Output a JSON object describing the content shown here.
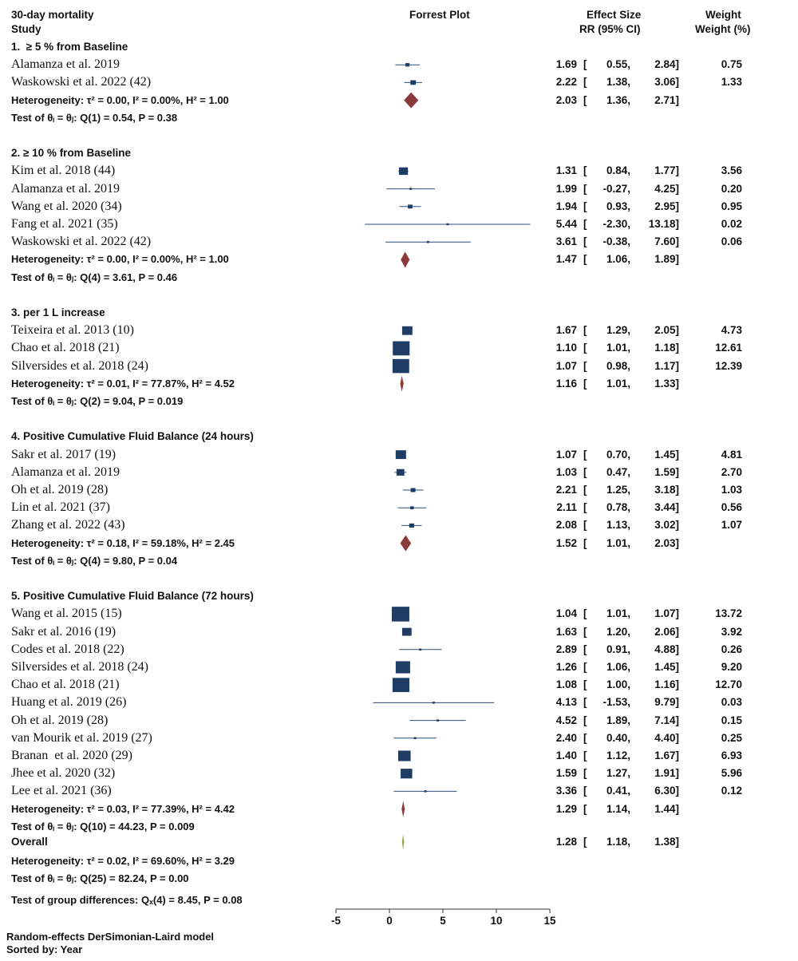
{
  "header": {
    "outcome": "30-day mortality",
    "study": "Study",
    "plot_title": "Forrest Plot",
    "effect_title": "Effect Size",
    "effect_sub": "RR (95% CI)",
    "weight_title": "Weight",
    "weight_sub": "Weight (%)"
  },
  "colors": {
    "study_marker": "#1f3c64",
    "ci_line": "#2b4d7a",
    "summary_diamond": "#8b3a3a",
    "overall_diamond": "#9aa84a",
    "axis": "#333333"
  },
  "chart_data": {
    "type": "forest",
    "xlim": [
      -5,
      15
    ],
    "ticks": [
      -5,
      0,
      5,
      10,
      15
    ],
    "groups": [
      {
        "label": "1.  ≥ 5 % from Baseline",
        "studies": [
          {
            "name": "Alamanza et al. 2019",
            "es": 1.69,
            "lo": 0.55,
            "hi": 2.84,
            "weight": 0.75,
            "es_text": "1.69",
            "lo_text": "0.55,",
            "hi_text": "2.84]",
            "weight_text": "0.75"
          },
          {
            "name": "Waskowski et al. 2022 (42)",
            "es": 2.22,
            "lo": 1.38,
            "hi": 3.06,
            "weight": 1.33,
            "es_text": "2.22",
            "lo_text": "1.38,",
            "hi_text": "3.06]",
            "weight_text": "1.33"
          }
        ],
        "heterogeneity": "Heterogeneity: τ² = 0.00, I² = 0.00%, H² = 1.00",
        "summary": {
          "es": 2.03,
          "lo": 1.36,
          "hi": 2.71,
          "es_text": "2.03",
          "lo_text": "1.36,",
          "hi_text": "2.71]"
        },
        "test": "Test of θᵢ = θⱼ: Q(1) = 0.54, P = 0.38"
      },
      {
        "label": "2. ≥ 10 % from Baseline",
        "studies": [
          {
            "name": "Kim et al. 2018 (44)",
            "es": 1.31,
            "lo": 0.84,
            "hi": 1.77,
            "weight": 3.56,
            "es_text": "1.31",
            "lo_text": "0.84,",
            "hi_text": "1.77]",
            "weight_text": "3.56"
          },
          {
            "name": "Alamanza et al. 2019",
            "es": 1.99,
            "lo": -0.27,
            "hi": 4.25,
            "weight": 0.2,
            "es_text": "1.99",
            "lo_text": "-0.27,",
            "hi_text": "4.25]",
            "weight_text": "0.20"
          },
          {
            "name": "Wang et al. 2020 (34)",
            "es": 1.94,
            "lo": 0.93,
            "hi": 2.95,
            "weight": 0.95,
            "es_text": "1.94",
            "lo_text": "0.93,",
            "hi_text": "2.95]",
            "weight_text": "0.95"
          },
          {
            "name": "Fang et al. 2021 (35)",
            "es": 5.44,
            "lo": -2.3,
            "hi": 13.18,
            "weight": 0.02,
            "es_text": "5.44",
            "lo_text": "-2.30,",
            "hi_text": "13.18]",
            "weight_text": "0.02"
          },
          {
            "name": "Waskowski et al. 2022 (42)",
            "es": 3.61,
            "lo": -0.38,
            "hi": 7.6,
            "weight": 0.06,
            "es_text": "3.61",
            "lo_text": "-0.38,",
            "hi_text": "7.60]",
            "weight_text": "0.06"
          }
        ],
        "heterogeneity": "Heterogeneity: τ² = 0.00, I² = 0.00%, H² = 1.00",
        "summary": {
          "es": 1.47,
          "lo": 1.06,
          "hi": 1.89,
          "es_text": "1.47",
          "lo_text": "1.06,",
          "hi_text": "1.89]"
        },
        "test": "Test of θᵢ = θⱼ: Q(4) = 3.61, P = 0.46"
      },
      {
        "label": "3. per 1 L increase",
        "studies": [
          {
            "name": "Teixeira et al. 2013 (10)",
            "es": 1.67,
            "lo": 1.29,
            "hi": 2.05,
            "weight": 4.73,
            "es_text": "1.67",
            "lo_text": "1.29,",
            "hi_text": "2.05]",
            "weight_text": "4.73"
          },
          {
            "name": "Chao et al. 2018 (21)",
            "es": 1.1,
            "lo": 1.01,
            "hi": 1.18,
            "weight": 12.61,
            "es_text": "1.10",
            "lo_text": "1.01,",
            "hi_text": "1.18]",
            "weight_text": "12.61"
          },
          {
            "name": "Silversides et al. 2018 (24)",
            "es": 1.07,
            "lo": 0.98,
            "hi": 1.17,
            "weight": 12.39,
            "es_text": "1.07",
            "lo_text": "0.98,",
            "hi_text": "1.17]",
            "weight_text": "12.39"
          }
        ],
        "heterogeneity": "Heterogeneity: τ² = 0.01, I² = 77.87%, H² = 4.52",
        "summary": {
          "es": 1.16,
          "lo": 1.01,
          "hi": 1.33,
          "es_text": "1.16",
          "lo_text": "1.01,",
          "hi_text": "1.33]"
        },
        "test": "Test of θᵢ = θⱼ: Q(2) = 9.04, P = 0.019"
      },
      {
        "label": "4. Positive Cumulative Fluid Balance (24 hours)",
        "studies": [
          {
            "name": "Sakr et al. 2017 (19)",
            "es": 1.07,
            "lo": 0.7,
            "hi": 1.45,
            "weight": 4.81,
            "es_text": "1.07",
            "lo_text": "0.70,",
            "hi_text": "1.45]",
            "weight_text": "4.81"
          },
          {
            "name": "Alamanza et al. 2019",
            "es": 1.03,
            "lo": 0.47,
            "hi": 1.59,
            "weight": 2.7,
            "es_text": "1.03",
            "lo_text": "0.47,",
            "hi_text": "1.59]",
            "weight_text": "2.70"
          },
          {
            "name": "Oh et al. 2019 (28)",
            "es": 2.21,
            "lo": 1.25,
            "hi": 3.18,
            "weight": 1.03,
            "es_text": "2.21",
            "lo_text": "1.25,",
            "hi_text": "3.18]",
            "weight_text": "1.03"
          },
          {
            "name": "Lin et al. 2021 (37)",
            "es": 2.11,
            "lo": 0.78,
            "hi": 3.44,
            "weight": 0.56,
            "es_text": "2.11",
            "lo_text": "0.78,",
            "hi_text": "3.44]",
            "weight_text": "0.56"
          },
          {
            "name": "Zhang et al. 2022 (43)",
            "es": 2.08,
            "lo": 1.13,
            "hi": 3.02,
            "weight": 1.07,
            "es_text": "2.08",
            "lo_text": "1.13,",
            "hi_text": "3.02]",
            "weight_text": "1.07"
          }
        ],
        "heterogeneity": "Heterogeneity: τ² = 0.18, I² = 59.18%, H² = 2.45",
        "summary": {
          "es": 1.52,
          "lo": 1.01,
          "hi": 2.03,
          "es_text": "1.52",
          "lo_text": "1.01,",
          "hi_text": "2.03]"
        },
        "test": "Test of θᵢ = θⱼ: Q(4) = 9.80, P = 0.04"
      },
      {
        "label": "5. Positive Cumulative Fluid Balance (72 hours)",
        "studies": [
          {
            "name": "Wang et al. 2015 (15)",
            "es": 1.04,
            "lo": 1.01,
            "hi": 1.07,
            "weight": 13.72,
            "es_text": "1.04",
            "lo_text": "1.01,",
            "hi_text": "1.07]",
            "weight_text": "13.72"
          },
          {
            "name": "Sakr et al. 2016 (19)",
            "es": 1.63,
            "lo": 1.2,
            "hi": 2.06,
            "weight": 3.92,
            "es_text": "1.63",
            "lo_text": "1.20,",
            "hi_text": "2.06]",
            "weight_text": "3.92"
          },
          {
            "name": "Codes et al. 2018 (22)",
            "es": 2.89,
            "lo": 0.91,
            "hi": 4.88,
            "weight": 0.26,
            "es_text": "2.89",
            "lo_text": "0.91,",
            "hi_text": "4.88]",
            "weight_text": "0.26"
          },
          {
            "name": "Silversides et al. 2018 (24)",
            "es": 1.26,
            "lo": 1.06,
            "hi": 1.45,
            "weight": 9.2,
            "es_text": "1.26",
            "lo_text": "1.06,",
            "hi_text": "1.45]",
            "weight_text": "9.20"
          },
          {
            "name": "Chao et al. 2018 (21)",
            "es": 1.08,
            "lo": 1.0,
            "hi": 1.16,
            "weight": 12.7,
            "es_text": "1.08",
            "lo_text": "1.00,",
            "hi_text": "1.16]",
            "weight_text": "12.70"
          },
          {
            "name": "Huang et al. 2019 (26)",
            "es": 4.13,
            "lo": -1.53,
            "hi": 9.79,
            "weight": 0.03,
            "es_text": "4.13",
            "lo_text": "-1.53,",
            "hi_text": "9.79]",
            "weight_text": "0.03"
          },
          {
            "name": "Oh et al. 2019 (28)",
            "es": 4.52,
            "lo": 1.89,
            "hi": 7.14,
            "weight": 0.15,
            "es_text": "4.52",
            "lo_text": "1.89,",
            "hi_text": "7.14]",
            "weight_text": "0.15"
          },
          {
            "name": "van Mourik et al. 2019 (27)",
            "es": 2.4,
            "lo": 0.4,
            "hi": 4.4,
            "weight": 0.25,
            "es_text": "2.40",
            "lo_text": "0.40,",
            "hi_text": "4.40]",
            "weight_text": "0.25"
          },
          {
            "name": "Branan  et al. 2020 (29)",
            "es": 1.4,
            "lo": 1.12,
            "hi": 1.67,
            "weight": 6.93,
            "es_text": "1.40",
            "lo_text": "1.12,",
            "hi_text": "1.67]",
            "weight_text": "6.93"
          },
          {
            "name": "Jhee et al. 2020 (32)",
            "es": 1.59,
            "lo": 1.27,
            "hi": 1.91,
            "weight": 5.96,
            "es_text": "1.59",
            "lo_text": "1.27,",
            "hi_text": "1.91]",
            "weight_text": "5.96"
          },
          {
            "name": "Lee et al. 2021 (36)",
            "es": 3.36,
            "lo": 0.41,
            "hi": 6.3,
            "weight": 0.12,
            "es_text": "3.36",
            "lo_text": "0.41,",
            "hi_text": "6.30]",
            "weight_text": "0.12"
          }
        ],
        "heterogeneity": "Heterogeneity: τ² = 0.03, I² = 77.39%, H² = 4.42",
        "summary": {
          "es": 1.29,
          "lo": 1.14,
          "hi": 1.44,
          "es_text": "1.29",
          "lo_text": "1.14,",
          "hi_text": "1.44]"
        },
        "test": "Test of θᵢ = θⱼ: Q(10) = 44.23, P = 0.009"
      }
    ],
    "overall": {
      "label": "Overall",
      "es": 1.28,
      "lo": 1.18,
      "hi": 1.38,
      "es_text": "1.28",
      "lo_text": "1.18,",
      "hi_text": "1.38]",
      "heterogeneity": "Heterogeneity: τ² = 0.02, I² = 69.60%, H² = 3.29",
      "test": "Test of θᵢ = θⱼ: Q(25) = 82.24, P = 0.00"
    },
    "group_test": "Test of group differences: Qₓ(4) = 8.45, P = 0.08"
  },
  "footer": {
    "model": "Random-effects DerSimonian-Laird model",
    "sorted": "Sorted by: Year"
  }
}
